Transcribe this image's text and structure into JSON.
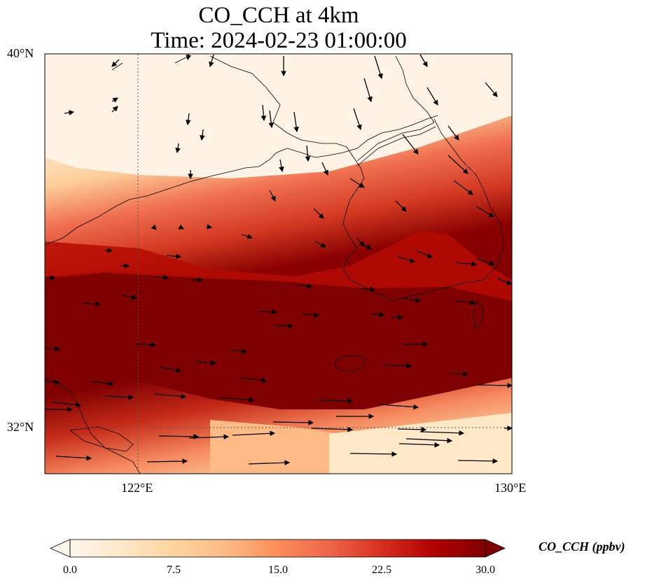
{
  "title": {
    "line1": "CO_CCH at 4km",
    "line2": "Time: 2024-02-23 01:00:00"
  },
  "map": {
    "lon_range": [
      120,
      130
    ],
    "lat_range": [
      31,
      40
    ],
    "lat_labels": [
      "40°N",
      "32°N"
    ],
    "lon_labels": [
      "122°E",
      "130°E"
    ],
    "gridlines": {
      "lon": 122,
      "lat": 32,
      "style": "dotted"
    },
    "features": [
      "coastline",
      "wind-vectors",
      "concentration-field"
    ]
  },
  "colorbar": {
    "label": "CO_CCH (ppbv)",
    "ticks": [
      "0.0",
      "7.5",
      "15.0",
      "22.5",
      "30.0"
    ],
    "min": 0,
    "max": 30,
    "extend": "both",
    "colormap": "OrRd",
    "colors": [
      "#fff7ec",
      "#fee8c8",
      "#fdd49e",
      "#fdbb84",
      "#fc8d59",
      "#ef6548",
      "#d7301f",
      "#b30000",
      "#7f0000"
    ]
  }
}
